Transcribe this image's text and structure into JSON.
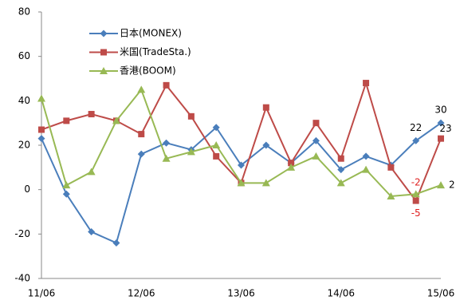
{
  "chart_data": {
    "type": "line",
    "categories": [
      "11/06",
      null,
      null,
      null,
      "12/06",
      null,
      null,
      null,
      "13/06",
      null,
      null,
      null,
      "14/06",
      null,
      null,
      null,
      "15/06"
    ],
    "series": [
      {
        "name": "日本(MONEX)",
        "color": "#4a7ebb",
        "marker": "diamond",
        "data_labels": [
          15,
          16
        ],
        "values": [
          23,
          -2,
          -19,
          -24,
          16,
          21,
          18,
          28,
          11,
          20,
          12,
          22,
          9,
          15,
          11,
          22,
          30
        ]
      },
      {
        "name": "米国(TradeSta.)",
        "color": "#be4b48",
        "marker": "square",
        "data_labels": [
          15,
          16
        ],
        "values": [
          27,
          31,
          34,
          31,
          25,
          47,
          33,
          15,
          3,
          37,
          12,
          30,
          14,
          48,
          10,
          -5,
          23
        ]
      },
      {
        "name": "香港(BOOM)",
        "color": "#98b954",
        "marker": "triangle",
        "data_labels": [
          15,
          16
        ],
        "values": [
          41,
          2,
          8,
          31,
          45,
          14,
          17,
          20,
          3,
          3,
          10,
          15,
          3,
          9,
          -3,
          -2,
          2
        ]
      }
    ],
    "ylim": [
      -40,
      80
    ],
    "yticks": [
      -40,
      -20,
      0,
      20,
      40,
      60,
      80
    ],
    "grid": false,
    "legend": "top-left"
  }
}
